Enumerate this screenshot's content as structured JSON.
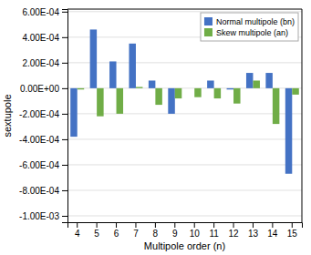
{
  "chart_data": {
    "type": "bar",
    "xlabel": "Multipole order (n)",
    "ylabel": "sextupole",
    "categories": [
      "4",
      "5",
      "6",
      "7",
      "8",
      "9",
      "10",
      "11",
      "12",
      "13",
      "14",
      "15"
    ],
    "series": [
      {
        "name": "Normal multipole (bn)",
        "color": "#4472C4",
        "values": [
          -0.00038,
          0.00046,
          0.00021,
          0.00035,
          6e-05,
          -0.0002,
          0.0,
          6e-05,
          -1e-05,
          0.00012,
          0.00012,
          -0.00067
        ]
      },
      {
        "name": "Skew multipole (an)",
        "color": "#70AD47",
        "values": [
          -1e-05,
          -0.00022,
          -0.0002,
          1e-05,
          -0.00013,
          -8e-05,
          -7e-05,
          -8e-05,
          -0.00012,
          6e-05,
          -0.00028,
          -5e-05
        ]
      }
    ],
    "ylim": [
      -0.00105,
      0.00062
    ],
    "yticks": [
      {
        "value": -0.001,
        "label": "-1.00E-03"
      },
      {
        "value": -0.0008,
        "label": "-8.00E-04"
      },
      {
        "value": -0.0006,
        "label": "-6.00E-04"
      },
      {
        "value": -0.0004,
        "label": "-4.00E-04"
      },
      {
        "value": -0.0002,
        "label": "-2.00E-04"
      },
      {
        "value": 0.0,
        "label": "0.00E+00"
      },
      {
        "value": 0.0002,
        "label": "2.00E-04"
      },
      {
        "value": 0.0004,
        "label": "4.00E-04"
      },
      {
        "value": 0.0006,
        "label": "6.00E-04"
      }
    ],
    "grid": true,
    "legend": "upper-right"
  }
}
